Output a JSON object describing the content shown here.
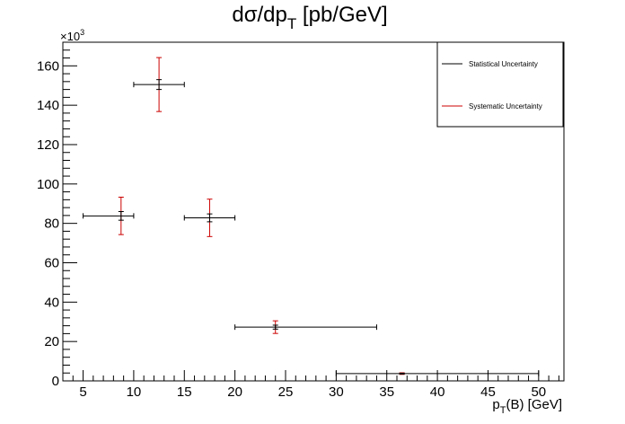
{
  "chart_data": {
    "type": "scatter",
    "title": "dσ/dp",
    "title_sub": "T",
    "title_rest": " [pb/GeV]",
    "xlabel": "p",
    "xlabel_sub": "T",
    "xlabel_rest": "(B) [GeV]",
    "ylabel": "",
    "y_multiplier": "×10",
    "y_multiplier_exp": "3",
    "xlim": [
      3,
      52.5
    ],
    "ylim": [
      0,
      172
    ],
    "xticks": [
      5,
      10,
      15,
      20,
      25,
      30,
      35,
      40,
      45,
      50
    ],
    "yticks": [
      0,
      20,
      40,
      60,
      80,
      100,
      120,
      140,
      160
    ],
    "grid": false,
    "legend_position": "top-right",
    "series": [
      {
        "name": "Statistical Uncertainty",
        "color": "#000000",
        "points": [
          {
            "x": 8.75,
            "xerr_low": 3.75,
            "xerr_high": 1.25,
            "y": 83.8,
            "yerr": 2.2
          },
          {
            "x": 12.5,
            "xerr_low": 2.5,
            "xerr_high": 2.5,
            "y": 150.5,
            "yerr": 2.5
          },
          {
            "x": 17.5,
            "xerr_low": 2.5,
            "xerr_high": 2.5,
            "y": 82.8,
            "yerr": 2.0
          },
          {
            "x": 24.0,
            "xerr_low": 4.0,
            "xerr_high": 10.0,
            "y": 27.3,
            "yerr": 1.0
          },
          {
            "x": 36.5,
            "xerr_low": 6.5,
            "xerr_high": 13.5,
            "y": 3.7,
            "yerr": 0.2
          }
        ]
      },
      {
        "name": "Systematic Uncertainty",
        "color": "#cc0000",
        "points": [
          {
            "x": 8.75,
            "y": 83.8,
            "yerr": 9.5
          },
          {
            "x": 12.5,
            "y": 150.5,
            "yerr": 13.7
          },
          {
            "x": 17.5,
            "y": 82.8,
            "yerr": 9.5
          },
          {
            "x": 24.0,
            "y": 27.3,
            "yerr": 3.2
          },
          {
            "x": 36.5,
            "y": 3.7,
            "yerr": 0.4
          }
        ]
      }
    ]
  }
}
